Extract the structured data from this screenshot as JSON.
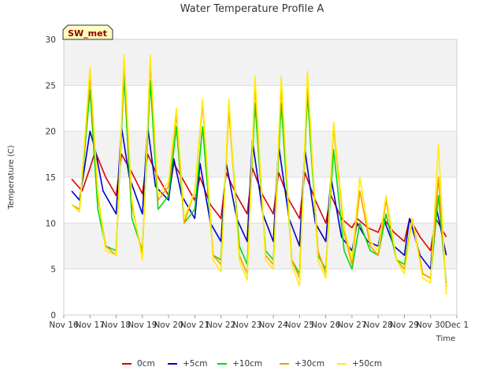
{
  "chart_data": {
    "type": "line",
    "title": "Water Temperature Profile A",
    "xlabel": "Time",
    "ylabel": "Temperature (C)",
    "ylim": [
      0,
      30
    ],
    "yticks": [
      0,
      5,
      10,
      15,
      20,
      25,
      30
    ],
    "xlim": [
      0,
      15
    ],
    "xticks": [
      {
        "day": 0,
        "label": "Nov 16"
      },
      {
        "day": 1,
        "label": "Nov 17"
      },
      {
        "day": 2,
        "label": "Nov 18"
      },
      {
        "day": 3,
        "label": "Nov 19"
      },
      {
        "day": 4,
        "label": "Nov 20"
      },
      {
        "day": 5,
        "label": "Nov 21"
      },
      {
        "day": 6,
        "label": "Nov 22"
      },
      {
        "day": 7,
        "label": "Nov 23"
      },
      {
        "day": 8,
        "label": "Nov 24"
      },
      {
        "day": 9,
        "label": "Nov 25"
      },
      {
        "day": 10,
        "label": "Nov 26"
      },
      {
        "day": 11,
        "label": "Nov 27"
      },
      {
        "day": 12,
        "label": "Nov 28"
      },
      {
        "day": 13,
        "label": "Nov 29"
      },
      {
        "day": 14,
        "label": "Nov 30"
      },
      {
        "day": 15,
        "label": "Dec 1"
      }
    ],
    "grid": "horizontal bands",
    "legend_position": "bottom",
    "annotation": "SW_met",
    "series": [
      {
        "name": "0cm",
        "color": "#dd0000",
        "x": [
          0.3,
          0.7,
          1.0,
          1.2,
          1.6,
          2.0,
          2.2,
          2.6,
          3.0,
          3.2,
          3.6,
          4.0,
          4.2,
          4.5,
          5.0,
          5.2,
          5.6,
          6.0,
          6.2,
          6.6,
          7.0,
          7.2,
          7.6,
          8.0,
          8.2,
          8.6,
          9.0,
          9.2,
          9.6,
          10.0,
          10.2,
          10.6,
          11.0,
          11.2,
          11.6,
          12.0,
          12.2,
          12.6,
          13.0,
          13.2,
          13.6,
          14.0,
          14.2,
          14.6
        ],
        "y": [
          14.8,
          13.5,
          16.0,
          17.8,
          15.0,
          13.0,
          17.5,
          15.5,
          13.2,
          17.5,
          15.0,
          13.0,
          16.5,
          15.0,
          12.5,
          15.0,
          12.0,
          10.5,
          15.5,
          13.0,
          11.0,
          16.0,
          13.0,
          11.0,
          15.5,
          12.5,
          10.5,
          15.5,
          12.5,
          10.0,
          13.0,
          10.5,
          9.5,
          10.5,
          9.5,
          9.0,
          10.5,
          9.0,
          8.0,
          10.5,
          8.5,
          7.0,
          10.5,
          8.5
        ]
      },
      {
        "name": "+5cm",
        "color": "#0000cc",
        "x": [
          0.3,
          0.6,
          1.0,
          1.2,
          1.5,
          2.0,
          2.2,
          2.5,
          3.0,
          3.2,
          3.5,
          4.0,
          4.2,
          4.5,
          5.0,
          5.2,
          5.6,
          6.0,
          6.2,
          6.6,
          7.0,
          7.2,
          7.6,
          8.0,
          8.2,
          8.6,
          9.0,
          9.2,
          9.6,
          10.0,
          10.2,
          10.6,
          11.0,
          11.2,
          11.6,
          12.0,
          12.2,
          12.6,
          13.0,
          13.2,
          13.6,
          14.0,
          14.2,
          14.6
        ],
        "y": [
          13.5,
          12.5,
          20.0,
          18.0,
          13.5,
          11.0,
          20.5,
          15.0,
          11.0,
          20.5,
          14.0,
          12.5,
          17.0,
          13.0,
          10.5,
          16.5,
          10.0,
          8.0,
          16.5,
          10.5,
          8.0,
          19.0,
          11.0,
          8.0,
          18.5,
          10.5,
          7.5,
          18.0,
          10.0,
          8.0,
          15.0,
          8.5,
          7.0,
          10.0,
          8.0,
          7.5,
          10.5,
          7.5,
          6.5,
          10.5,
          6.5,
          5.0,
          12.0,
          6.5
        ]
      },
      {
        "name": "+10cm",
        "color": "#00dd00",
        "x": [
          0.3,
          0.6,
          1.0,
          1.3,
          1.6,
          2.0,
          2.3,
          2.6,
          3.0,
          3.3,
          3.6,
          4.0,
          4.3,
          4.6,
          5.0,
          5.3,
          5.7,
          6.0,
          6.3,
          6.7,
          7.0,
          7.3,
          7.7,
          8.0,
          8.3,
          8.7,
          9.0,
          9.3,
          9.7,
          10.0,
          10.3,
          10.7,
          11.0,
          11.3,
          11.7,
          12.0,
          12.3,
          12.7,
          13.0,
          13.3,
          13.7,
          14.0,
          14.3,
          14.6
        ],
        "y": [
          12.0,
          11.5,
          24.5,
          11.5,
          7.5,
          7.0,
          26.0,
          10.5,
          7.0,
          25.5,
          11.5,
          13.0,
          20.5,
          10.0,
          11.5,
          20.5,
          6.5,
          6.0,
          22.5,
          7.5,
          5.5,
          23.0,
          7.0,
          6.0,
          23.0,
          6.0,
          4.5,
          24.0,
          6.5,
          5.0,
          18.0,
          7.0,
          5.0,
          10.0,
          7.0,
          6.5,
          11.0,
          6.0,
          5.5,
          10.5,
          4.5,
          4.0,
          13.0,
          3.5
        ]
      },
      {
        "name": "+30cm",
        "color": "#ff9900",
        "x": [
          0.3,
          0.6,
          1.0,
          1.3,
          1.6,
          2.0,
          2.3,
          2.6,
          3.0,
          3.3,
          3.6,
          4.0,
          4.3,
          4.6,
          5.0,
          5.3,
          5.7,
          6.0,
          6.3,
          6.7,
          7.0,
          7.3,
          7.7,
          8.0,
          8.3,
          8.7,
          9.0,
          9.3,
          9.7,
          10.0,
          10.3,
          10.7,
          11.0,
          11.3,
          11.7,
          12.0,
          12.3,
          12.7,
          13.0,
          13.3,
          13.7,
          14.0,
          14.3,
          14.6
        ],
        "y": [
          12.0,
          11.5,
          26.0,
          13.0,
          7.5,
          6.5,
          27.5,
          12.0,
          6.5,
          27.5,
          12.5,
          14.0,
          22.0,
          10.0,
          13.5,
          23.0,
          6.5,
          5.5,
          22.5,
          6.5,
          4.5,
          25.0,
          6.5,
          5.5,
          25.0,
          6.0,
          4.0,
          25.5,
          7.0,
          4.5,
          20.5,
          9.0,
          5.5,
          13.5,
          7.5,
          6.5,
          12.5,
          6.0,
          5.0,
          10.5,
          4.5,
          4.0,
          15.0,
          3.0
        ]
      },
      {
        "name": "+50cm",
        "color": "#ffee00",
        "x": [
          0.3,
          0.6,
          1.0,
          1.3,
          1.6,
          2.0,
          2.3,
          2.6,
          3.0,
          3.3,
          3.6,
          4.0,
          4.3,
          4.6,
          5.0,
          5.3,
          5.7,
          6.0,
          6.3,
          6.7,
          7.0,
          7.3,
          7.7,
          8.0,
          8.3,
          8.7,
          9.0,
          9.3,
          9.7,
          10.0,
          10.3,
          10.7,
          11.0,
          11.3,
          11.7,
          12.0,
          12.3,
          12.7,
          13.0,
          13.3,
          13.7,
          14.0,
          14.3,
          14.6
        ],
        "y": [
          12.0,
          11.2,
          27.0,
          13.5,
          7.0,
          6.5,
          28.3,
          12.5,
          6.0,
          28.3,
          13.0,
          14.5,
          22.5,
          10.5,
          13.5,
          23.5,
          6.0,
          4.7,
          23.5,
          6.0,
          3.8,
          26.0,
          6.0,
          5.0,
          26.0,
          5.5,
          3.2,
          26.5,
          6.0,
          4.0,
          21.0,
          9.5,
          6.0,
          15.0,
          8.0,
          7.0,
          13.0,
          6.0,
          4.5,
          10.5,
          4.0,
          3.5,
          18.5,
          2.2
        ]
      }
    ]
  }
}
